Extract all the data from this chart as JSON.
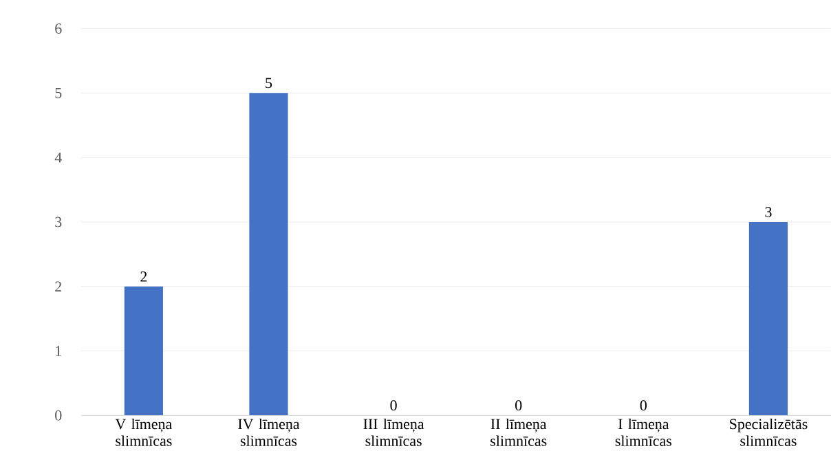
{
  "chart_data": {
    "type": "bar",
    "categories": [
      "V līmeņa slimnīcas",
      "IV līmeņa slimnīcas",
      "III līmeņa slimnīcas",
      "II līmeņa slimnīcas",
      "I līmeņa slimnīcas",
      "Specializētās slimnīcas"
    ],
    "values": [
      2,
      5,
      0,
      0,
      0,
      3
    ],
    "color": "#4472c4",
    "ylim": [
      0,
      6
    ],
    "yticks": [
      0,
      1,
      2,
      3,
      4,
      5,
      6
    ],
    "grid": "y",
    "data_labels": true
  }
}
